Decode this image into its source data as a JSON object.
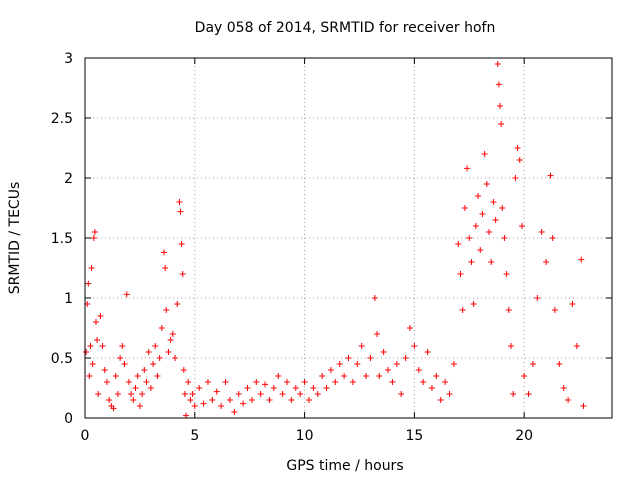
{
  "chart_data": {
    "type": "scatter",
    "title": "Day 058 of 2014, SRMTID for receiver hofn",
    "xlabel": "GPS time / hours",
    "ylabel": "SRMTID / TECUs",
    "xlim": [
      0,
      24
    ],
    "ylim": [
      0,
      3
    ],
    "xticks": [
      0,
      5,
      10,
      15,
      20
    ],
    "yticks": [
      0,
      0.5,
      1,
      1.5,
      2,
      2.5,
      3
    ],
    "xtick_labels": [
      "0",
      "5",
      "10",
      "15",
      "20"
    ],
    "ytick_labels": [
      "0",
      "0.5",
      "1",
      "1.5",
      "2",
      "2.5",
      "3"
    ],
    "grid": true,
    "marker": "+",
    "color": "#ff0000",
    "series": [
      {
        "name": "hofn",
        "points": [
          [
            0.05,
            0.55
          ],
          [
            0.1,
            0.95
          ],
          [
            0.15,
            1.12
          ],
          [
            0.2,
            0.35
          ],
          [
            0.25,
            0.6
          ],
          [
            0.3,
            1.25
          ],
          [
            0.35,
            0.45
          ],
          [
            0.4,
            1.5
          ],
          [
            0.45,
            1.55
          ],
          [
            0.5,
            0.8
          ],
          [
            0.55,
            0.65
          ],
          [
            0.6,
            0.2
          ],
          [
            0.7,
            0.85
          ],
          [
            0.8,
            0.6
          ],
          [
            0.9,
            0.4
          ],
          [
            1.0,
            0.3
          ],
          [
            1.1,
            0.15
          ],
          [
            1.2,
            0.1
          ],
          [
            1.3,
            0.08
          ],
          [
            1.4,
            0.35
          ],
          [
            1.5,
            0.2
          ],
          [
            1.6,
            0.5
          ],
          [
            1.7,
            0.6
          ],
          [
            1.8,
            0.45
          ],
          [
            1.9,
            1.03
          ],
          [
            2.0,
            0.3
          ],
          [
            2.1,
            0.2
          ],
          [
            2.2,
            0.15
          ],
          [
            2.3,
            0.25
          ],
          [
            2.4,
            0.35
          ],
          [
            2.5,
            0.1
          ],
          [
            2.6,
            0.2
          ],
          [
            2.7,
            0.4
          ],
          [
            2.8,
            0.3
          ],
          [
            2.9,
            0.55
          ],
          [
            3.0,
            0.25
          ],
          [
            3.1,
            0.45
          ],
          [
            3.2,
            0.6
          ],
          [
            3.3,
            0.35
          ],
          [
            3.4,
            0.5
          ],
          [
            3.5,
            0.75
          ],
          [
            3.6,
            1.38
          ],
          [
            3.65,
            1.25
          ],
          [
            3.7,
            0.9
          ],
          [
            3.8,
            0.55
          ],
          [
            3.9,
            0.65
          ],
          [
            4.0,
            0.7
          ],
          [
            4.1,
            0.5
          ],
          [
            4.2,
            0.95
          ],
          [
            4.3,
            1.8
          ],
          [
            4.35,
            1.72
          ],
          [
            4.4,
            1.45
          ],
          [
            4.45,
            1.2
          ],
          [
            4.5,
            0.4
          ],
          [
            4.55,
            0.2
          ],
          [
            4.6,
            0.02
          ],
          [
            4.7,
            0.3
          ],
          [
            4.8,
            0.15
          ],
          [
            4.9,
            0.2
          ],
          [
            5.0,
            0.1
          ],
          [
            5.2,
            0.25
          ],
          [
            5.4,
            0.12
          ],
          [
            5.6,
            0.3
          ],
          [
            5.8,
            0.15
          ],
          [
            6.0,
            0.22
          ],
          [
            6.2,
            0.1
          ],
          [
            6.4,
            0.3
          ],
          [
            6.6,
            0.15
          ],
          [
            6.8,
            0.05
          ],
          [
            7.0,
            0.2
          ],
          [
            7.2,
            0.12
          ],
          [
            7.4,
            0.25
          ],
          [
            7.6,
            0.15
          ],
          [
            7.8,
            0.3
          ],
          [
            8.0,
            0.2
          ],
          [
            8.2,
            0.28
          ],
          [
            8.4,
            0.15
          ],
          [
            8.6,
            0.25
          ],
          [
            8.8,
            0.35
          ],
          [
            9.0,
            0.2
          ],
          [
            9.2,
            0.3
          ],
          [
            9.4,
            0.15
          ],
          [
            9.6,
            0.25
          ],
          [
            9.8,
            0.2
          ],
          [
            10.0,
            0.3
          ],
          [
            10.2,
            0.15
          ],
          [
            10.4,
            0.25
          ],
          [
            10.6,
            0.2
          ],
          [
            10.8,
            0.35
          ],
          [
            11.0,
            0.25
          ],
          [
            11.2,
            0.4
          ],
          [
            11.4,
            0.3
          ],
          [
            11.6,
            0.45
          ],
          [
            11.8,
            0.35
          ],
          [
            12.0,
            0.5
          ],
          [
            12.2,
            0.3
          ],
          [
            12.4,
            0.45
          ],
          [
            12.6,
            0.6
          ],
          [
            12.8,
            0.35
          ],
          [
            13.0,
            0.5
          ],
          [
            13.2,
            1.0
          ],
          [
            13.3,
            0.7
          ],
          [
            13.4,
            0.35
          ],
          [
            13.6,
            0.55
          ],
          [
            13.8,
            0.4
          ],
          [
            14.0,
            0.3
          ],
          [
            14.2,
            0.45
          ],
          [
            14.4,
            0.2
          ],
          [
            14.6,
            0.5
          ],
          [
            14.8,
            0.75
          ],
          [
            15.0,
            0.6
          ],
          [
            15.2,
            0.4
          ],
          [
            15.4,
            0.3
          ],
          [
            15.6,
            0.55
          ],
          [
            15.8,
            0.25
          ],
          [
            16.0,
            0.35
          ],
          [
            16.2,
            0.15
          ],
          [
            16.4,
            0.3
          ],
          [
            16.6,
            0.2
          ],
          [
            16.8,
            0.45
          ],
          [
            17.0,
            1.45
          ],
          [
            17.1,
            1.2
          ],
          [
            17.2,
            0.9
          ],
          [
            17.3,
            1.75
          ],
          [
            17.4,
            2.08
          ],
          [
            17.5,
            1.5
          ],
          [
            17.6,
            1.3
          ],
          [
            17.7,
            0.95
          ],
          [
            17.8,
            1.6
          ],
          [
            17.9,
            1.85
          ],
          [
            18.0,
            1.4
          ],
          [
            18.1,
            1.7
          ],
          [
            18.2,
            2.2
          ],
          [
            18.3,
            1.95
          ],
          [
            18.4,
            1.55
          ],
          [
            18.5,
            1.3
          ],
          [
            18.6,
            1.8
          ],
          [
            18.7,
            1.65
          ],
          [
            18.8,
            2.95
          ],
          [
            18.85,
            2.78
          ],
          [
            18.9,
            2.6
          ],
          [
            18.95,
            2.45
          ],
          [
            19.0,
            1.75
          ],
          [
            19.1,
            1.5
          ],
          [
            19.2,
            1.2
          ],
          [
            19.3,
            0.9
          ],
          [
            19.4,
            0.6
          ],
          [
            19.5,
            0.2
          ],
          [
            19.6,
            2.0
          ],
          [
            19.7,
            2.25
          ],
          [
            19.8,
            2.15
          ],
          [
            19.9,
            1.6
          ],
          [
            20.0,
            0.35
          ],
          [
            20.2,
            0.2
          ],
          [
            20.4,
            0.45
          ],
          [
            20.6,
            1.0
          ],
          [
            20.8,
            1.55
          ],
          [
            21.0,
            1.3
          ],
          [
            21.2,
            2.02
          ],
          [
            21.3,
            1.5
          ],
          [
            21.4,
            0.9
          ],
          [
            21.6,
            0.45
          ],
          [
            21.8,
            0.25
          ],
          [
            22.0,
            0.15
          ],
          [
            22.2,
            0.95
          ],
          [
            22.4,
            0.6
          ],
          [
            22.6,
            1.32
          ],
          [
            22.7,
            0.1
          ]
        ]
      }
    ]
  }
}
